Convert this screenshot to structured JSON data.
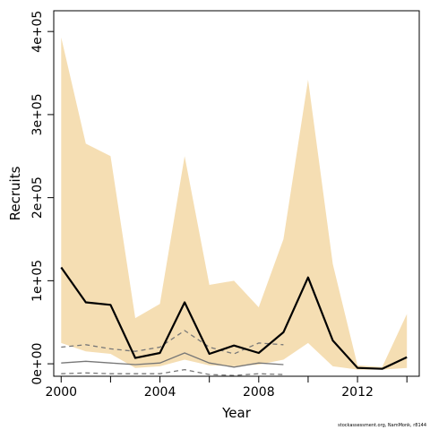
{
  "chart_data": {
    "type": "line",
    "xlabel": "Year",
    "ylabel": "Recruits",
    "xlim": [
      1999.7,
      2014.5
    ],
    "ylim": [
      -15000,
      425000
    ],
    "x_ticks": [
      2000,
      2004,
      2008,
      2012
    ],
    "x_tick_labels": [
      "2000",
      "2004",
      "2008",
      "2012"
    ],
    "y_ticks": [
      0,
      100000,
      200000,
      300000,
      400000
    ],
    "y_tick_labels": [
      "0e+00",
      "1e+05",
      "2e+05",
      "3e+05",
      "4e+05"
    ],
    "grid": false,
    "legend": "none",
    "x": [
      2000,
      2001,
      2002,
      2003,
      2004,
      2005,
      2006,
      2007,
      2008,
      2009,
      2010,
      2011,
      2012,
      2013,
      2014
    ],
    "recruits": [
      116000,
      74000,
      71000,
      7000,
      13000,
      74000,
      12000,
      22000,
      13000,
      38000,
      104000,
      28000,
      -5000,
      -6000,
      8000
    ],
    "ci_upper": [
      393000,
      265000,
      250000,
      55000,
      72000,
      250000,
      95000,
      100000,
      68000,
      150000,
      342000,
      120000,
      -2000,
      -4000,
      60000
    ],
    "ci_lower": [
      25000,
      15000,
      12000,
      -5000,
      -3000,
      5000,
      -2000,
      -3000,
      -1000,
      5000,
      25000,
      -3000,
      -7000,
      -7000,
      -5000
    ],
    "other_x": [
      2000,
      2001,
      2002,
      2003,
      2004,
      2005,
      2006,
      2007,
      2008,
      2009
    ],
    "other_mid": [
      1000,
      3000,
      1000,
      -1000,
      1000,
      13000,
      1000,
      -4000,
      1000,
      -1000
    ],
    "other_upper": [
      20000,
      23000,
      18000,
      15000,
      20000,
      40000,
      20000,
      12000,
      25000,
      23000
    ],
    "other_lower": [
      -12000,
      -11000,
      -12000,
      -12000,
      -12000,
      -7000,
      -13000,
      -14000,
      -12000,
      -13000
    ],
    "colors": {
      "band": "#f5deb3",
      "main_line": "#000000",
      "other_line": "#777777"
    }
  },
  "footer_note": "stockassessment.org, NamMonk, r8144"
}
